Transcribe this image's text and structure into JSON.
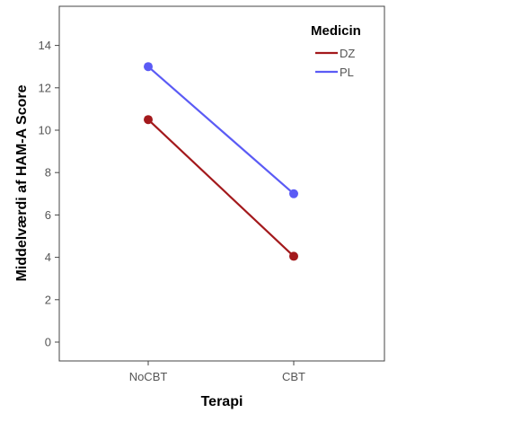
{
  "chart_data": {
    "type": "line",
    "categories": [
      "NoCBT",
      "CBT"
    ],
    "series": [
      {
        "name": "DZ",
        "values": [
          10.5,
          4.05
        ],
        "color": "#a3191c"
      },
      {
        "name": "PL",
        "values": [
          13.0,
          7.0
        ],
        "color": "#5b5bf5"
      }
    ],
    "title": "",
    "xlabel": "Terapi",
    "ylabel": "Middelværdi af HAM-A Score",
    "ylim": [
      -0.8,
      15.2
    ],
    "yticks": [
      0,
      2,
      4,
      6,
      8,
      10,
      12,
      14
    ],
    "legend": {
      "title": "Medicin",
      "position": "top-right"
    },
    "grid": false
  }
}
